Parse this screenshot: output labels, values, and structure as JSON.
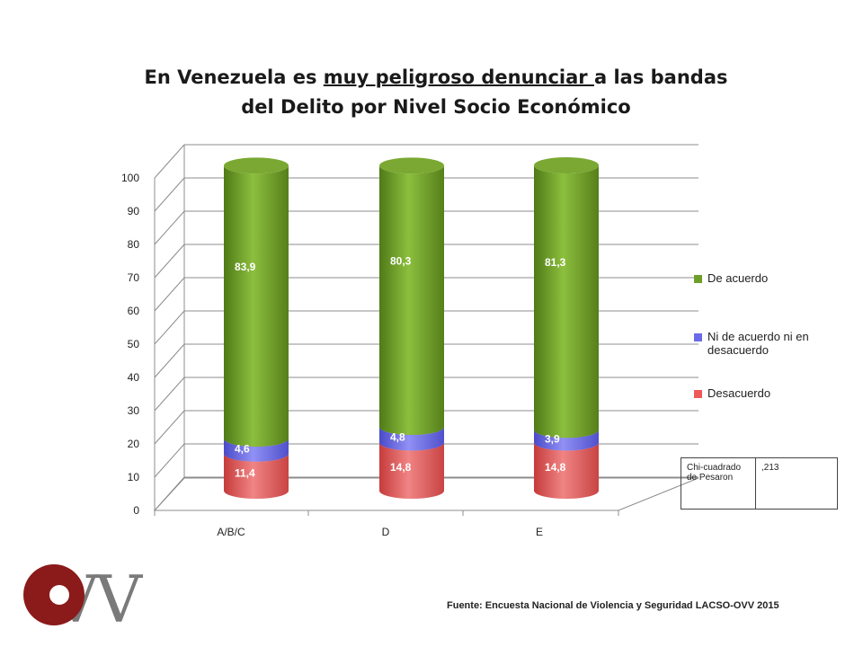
{
  "title": {
    "part1": "En Venezuela es ",
    "underlined": "muy peligroso denunciar ",
    "part2": "a las bandas",
    "line2": "del Delito por Nivel Socio Económico"
  },
  "chart_data": {
    "type": "bar",
    "stacked": true,
    "style": "3d-cylinder",
    "categories": [
      "A/B/C",
      "D",
      "E"
    ],
    "series": [
      {
        "name": "Desacuerdo",
        "values": [
          11.4,
          14.8,
          14.8
        ],
        "labels": [
          "11,4",
          "14,8",
          "14,8"
        ],
        "color": "#ee5a5a"
      },
      {
        "name": "Ni de acuerdo ni en desacuerdo",
        "values": [
          4.6,
          4.8,
          3.9
        ],
        "labels": [
          "4,6",
          "4,8",
          "3,9"
        ],
        "color": "#6b6be8"
      },
      {
        "name": "De acuerdo",
        "values": [
          83.9,
          80.3,
          81.3
        ],
        "labels": [
          "83,9",
          "80,3",
          "81,3"
        ],
        "color": "#6f9e2a"
      }
    ],
    "ylim": [
      0,
      100
    ],
    "yticks": [
      "0",
      "10",
      "20",
      "30",
      "40",
      "50",
      "60",
      "70",
      "80",
      "90",
      "100"
    ],
    "grid": true,
    "legend_position": "right"
  },
  "legend": {
    "items": [
      {
        "label": "De acuerdo",
        "color": "#6f9e2a"
      },
      {
        "label": "Ni de acuerdo ni en desacuerdo",
        "color": "#6b6be8"
      },
      {
        "label": "Desacuerdo",
        "color": "#ee5a5a"
      }
    ]
  },
  "stats_table": {
    "label": "Chi-cuadrado de Pesaron",
    "value": ",213"
  },
  "footer": {
    "source": "Fuente: Encuesta Nacional de Violencia y Seguridad LACSO-OVV 2015"
  },
  "logo": {
    "text": "OVV",
    "colors": [
      "#8b1a1a",
      "#7a7a7a"
    ]
  }
}
